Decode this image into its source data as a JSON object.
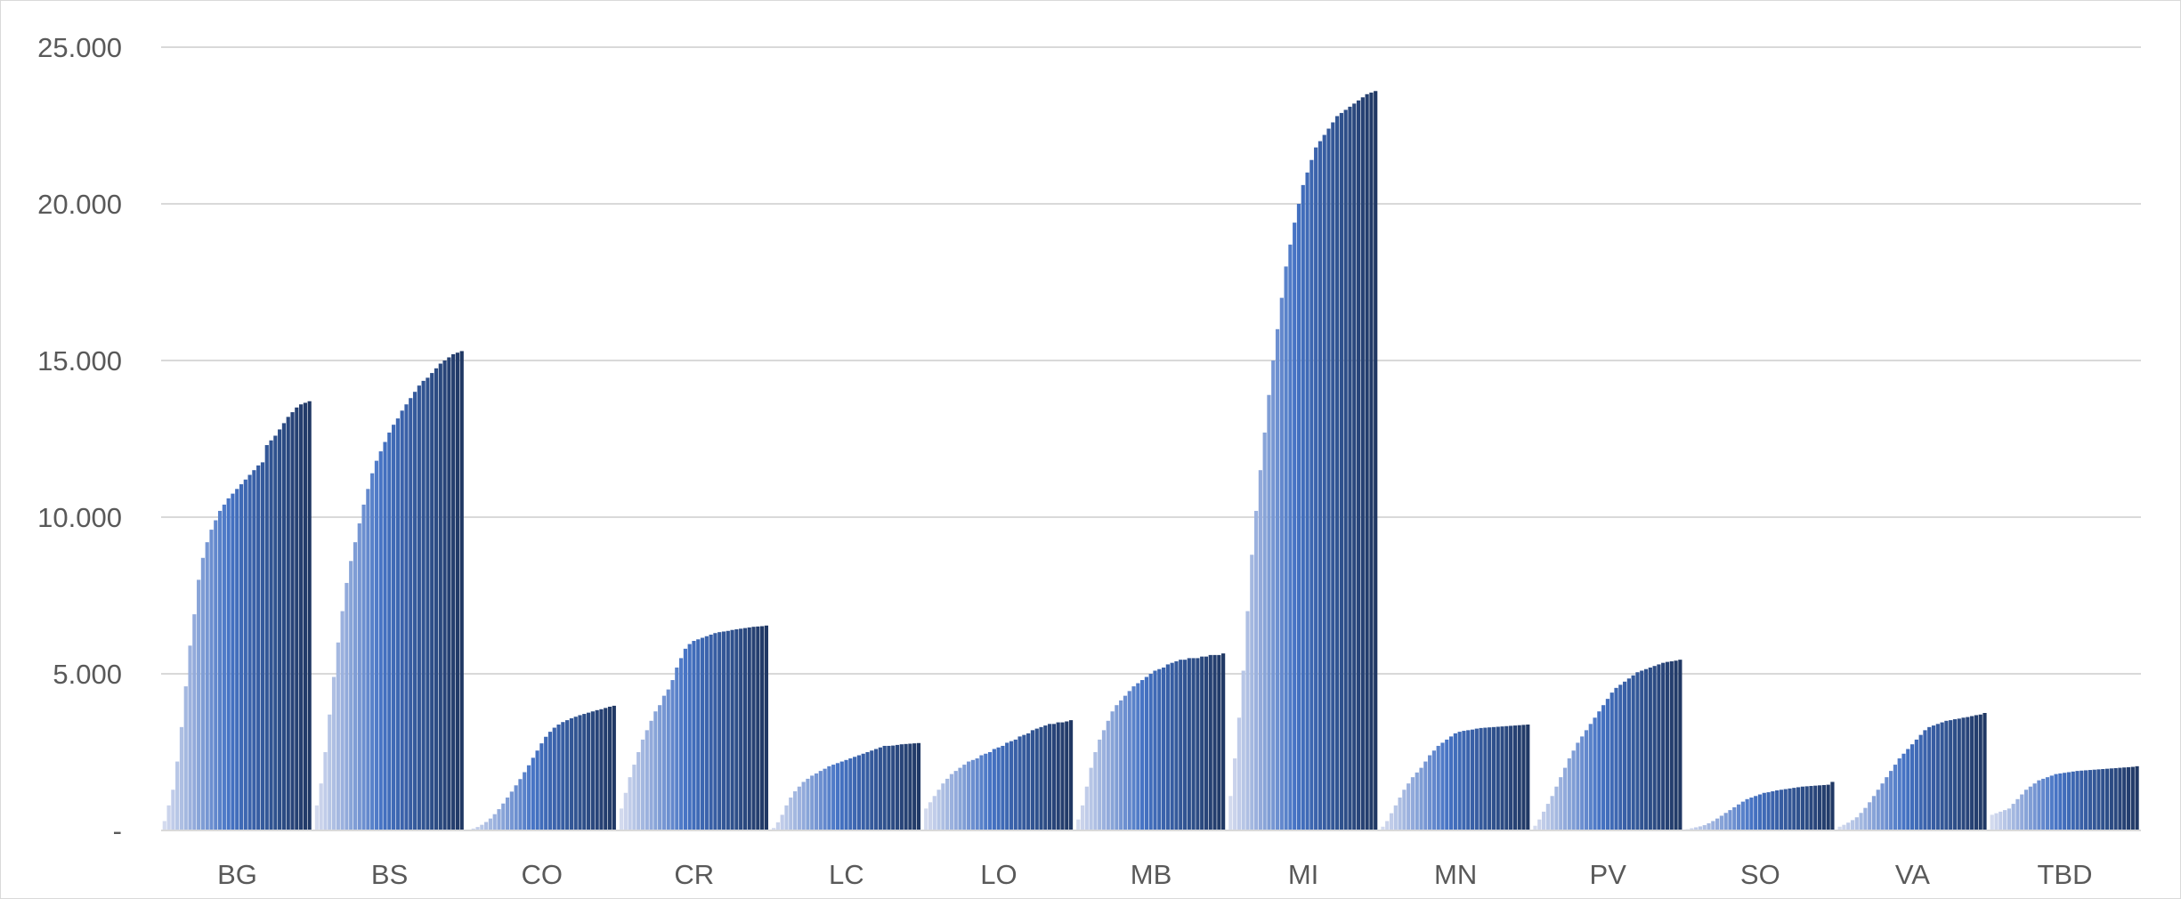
{
  "chart_data": {
    "type": "bar",
    "title": "",
    "xlabel": "",
    "ylabel": "",
    "ylim": [
      0,
      25000
    ],
    "grid": true,
    "legend": "none",
    "y_ticks": [
      {
        "value": 0,
        "label": "-"
      },
      {
        "value": 5000,
        "label": "5.000"
      },
      {
        "value": 10000,
        "label": "10.000"
      },
      {
        "value": 15000,
        "label": "15.000"
      },
      {
        "value": 20000,
        "label": "20.000"
      },
      {
        "value": 25000,
        "label": "25.000"
      }
    ],
    "colors": {
      "light": "#d3daee",
      "mid": "#4472c4",
      "dark": "#203864",
      "grid": "#d9d9d9",
      "axis": "#d9d9d9",
      "text": "#595959"
    },
    "categories": [
      {
        "label": "BG",
        "values": [
          300,
          800,
          1300,
          2200,
          3300,
          4600,
          5900,
          6900,
          8000,
          8700,
          9200,
          9600,
          9900,
          10200,
          10400,
          10600,
          10750,
          10900,
          11050,
          11200,
          11350,
          11500,
          11650,
          11750,
          12300,
          12450,
          12600,
          12800,
          13000,
          13200,
          13350,
          13500,
          13600,
          13650,
          13700
        ]
      },
      {
        "label": "BS",
        "values": [
          800,
          1500,
          2500,
          3700,
          4900,
          6000,
          7000,
          7900,
          8600,
          9200,
          9800,
          10400,
          10900,
          11400,
          11800,
          12100,
          12400,
          12700,
          12950,
          13150,
          13400,
          13600,
          13800,
          14000,
          14200,
          14350,
          14450,
          14600,
          14750,
          14900,
          15000,
          15100,
          15200,
          15250,
          15300
        ]
      },
      {
        "label": "CO",
        "values": [
          30,
          60,
          110,
          180,
          270,
          380,
          520,
          680,
          860,
          1050,
          1240,
          1440,
          1640,
          1860,
          2080,
          2320,
          2550,
          2780,
          2990,
          3150,
          3280,
          3380,
          3460,
          3520,
          3580,
          3630,
          3680,
          3720,
          3760,
          3800,
          3840,
          3870,
          3910,
          3950,
          3980
        ]
      },
      {
        "label": "CR",
        "values": [
          700,
          1200,
          1700,
          2100,
          2500,
          2900,
          3200,
          3500,
          3800,
          4000,
          4300,
          4500,
          4800,
          5200,
          5500,
          5800,
          5950,
          6050,
          6100,
          6150,
          6200,
          6250,
          6300,
          6330,
          6350,
          6370,
          6400,
          6420,
          6440,
          6460,
          6480,
          6500,
          6510,
          6520,
          6540
        ]
      },
      {
        "label": "LC",
        "values": [
          80,
          260,
          500,
          800,
          1050,
          1250,
          1400,
          1550,
          1650,
          1750,
          1820,
          1900,
          1970,
          2050,
          2100,
          2150,
          2200,
          2250,
          2300,
          2350,
          2400,
          2450,
          2500,
          2550,
          2600,
          2650,
          2700,
          2700,
          2710,
          2730,
          2750,
          2760,
          2770,
          2780,
          2790
        ]
      },
      {
        "label": "LO",
        "values": [
          700,
          900,
          1100,
          1300,
          1500,
          1650,
          1800,
          1900,
          2000,
          2100,
          2200,
          2250,
          2300,
          2400,
          2450,
          2500,
          2600,
          2650,
          2700,
          2800,
          2850,
          2900,
          3000,
          3050,
          3100,
          3200,
          3250,
          3300,
          3350,
          3400,
          3400,
          3450,
          3450,
          3480,
          3520
        ]
      },
      {
        "label": "MB",
        "values": [
          350,
          800,
          1400,
          2000,
          2500,
          2900,
          3200,
          3500,
          3800,
          4000,
          4150,
          4300,
          4450,
          4600,
          4700,
          4800,
          4900,
          5000,
          5100,
          5150,
          5200,
          5300,
          5350,
          5400,
          5450,
          5450,
          5500,
          5500,
          5500,
          5550,
          5550,
          5600,
          5600,
          5600,
          5650
        ]
      },
      {
        "label": "MI",
        "values": [
          1100,
          2300,
          3600,
          5100,
          7000,
          8800,
          10200,
          11500,
          12700,
          13900,
          15000,
          16000,
          17000,
          18000,
          18700,
          19400,
          20000,
          20600,
          21000,
          21400,
          21800,
          22000,
          22200,
          22400,
          22600,
          22800,
          22900,
          23000,
          23100,
          23200,
          23300,
          23400,
          23500,
          23550,
          23600
        ]
      },
      {
        "label": "MN",
        "values": [
          120,
          300,
          550,
          800,
          1050,
          1300,
          1500,
          1700,
          1850,
          2000,
          2200,
          2400,
          2550,
          2700,
          2800,
          2900,
          3000,
          3100,
          3150,
          3180,
          3200,
          3220,
          3250,
          3270,
          3280,
          3290,
          3300,
          3310,
          3320,
          3330,
          3340,
          3350,
          3360,
          3370,
          3380
        ]
      },
      {
        "label": "PV",
        "values": [
          150,
          350,
          600,
          850,
          1100,
          1400,
          1700,
          2000,
          2300,
          2550,
          2800,
          3000,
          3200,
          3400,
          3600,
          3800,
          4000,
          4200,
          4400,
          4550,
          4650,
          4750,
          4850,
          4950,
          5050,
          5100,
          5150,
          5200,
          5250,
          5300,
          5350,
          5380,
          5400,
          5420,
          5450
        ]
      },
      {
        "label": "SO",
        "values": [
          40,
          70,
          100,
          130,
          170,
          230,
          300,
          380,
          470,
          560,
          650,
          740,
          830,
          920,
          1000,
          1050,
          1100,
          1150,
          1200,
          1220,
          1250,
          1280,
          1300,
          1320,
          1340,
          1360,
          1380,
          1400,
          1410,
          1420,
          1430,
          1440,
          1450,
          1460,
          1550
        ]
      },
      {
        "label": "VA",
        "values": [
          120,
          180,
          250,
          330,
          420,
          560,
          720,
          900,
          1100,
          1300,
          1500,
          1700,
          1900,
          2100,
          2300,
          2450,
          2600,
          2750,
          2900,
          3050,
          3200,
          3300,
          3350,
          3400,
          3450,
          3500,
          3520,
          3550,
          3570,
          3600,
          3620,
          3650,
          3680,
          3700,
          3750
        ]
      },
      {
        "label": "TBD",
        "values": [
          500,
          550,
          600,
          650,
          700,
          850,
          1000,
          1150,
          1300,
          1400,
          1500,
          1600,
          1650,
          1700,
          1750,
          1800,
          1820,
          1840,
          1860,
          1880,
          1900,
          1910,
          1920,
          1930,
          1940,
          1950,
          1960,
          1970,
          1980,
          1990,
          2000,
          2010,
          2020,
          2030,
          2050
        ]
      }
    ]
  }
}
